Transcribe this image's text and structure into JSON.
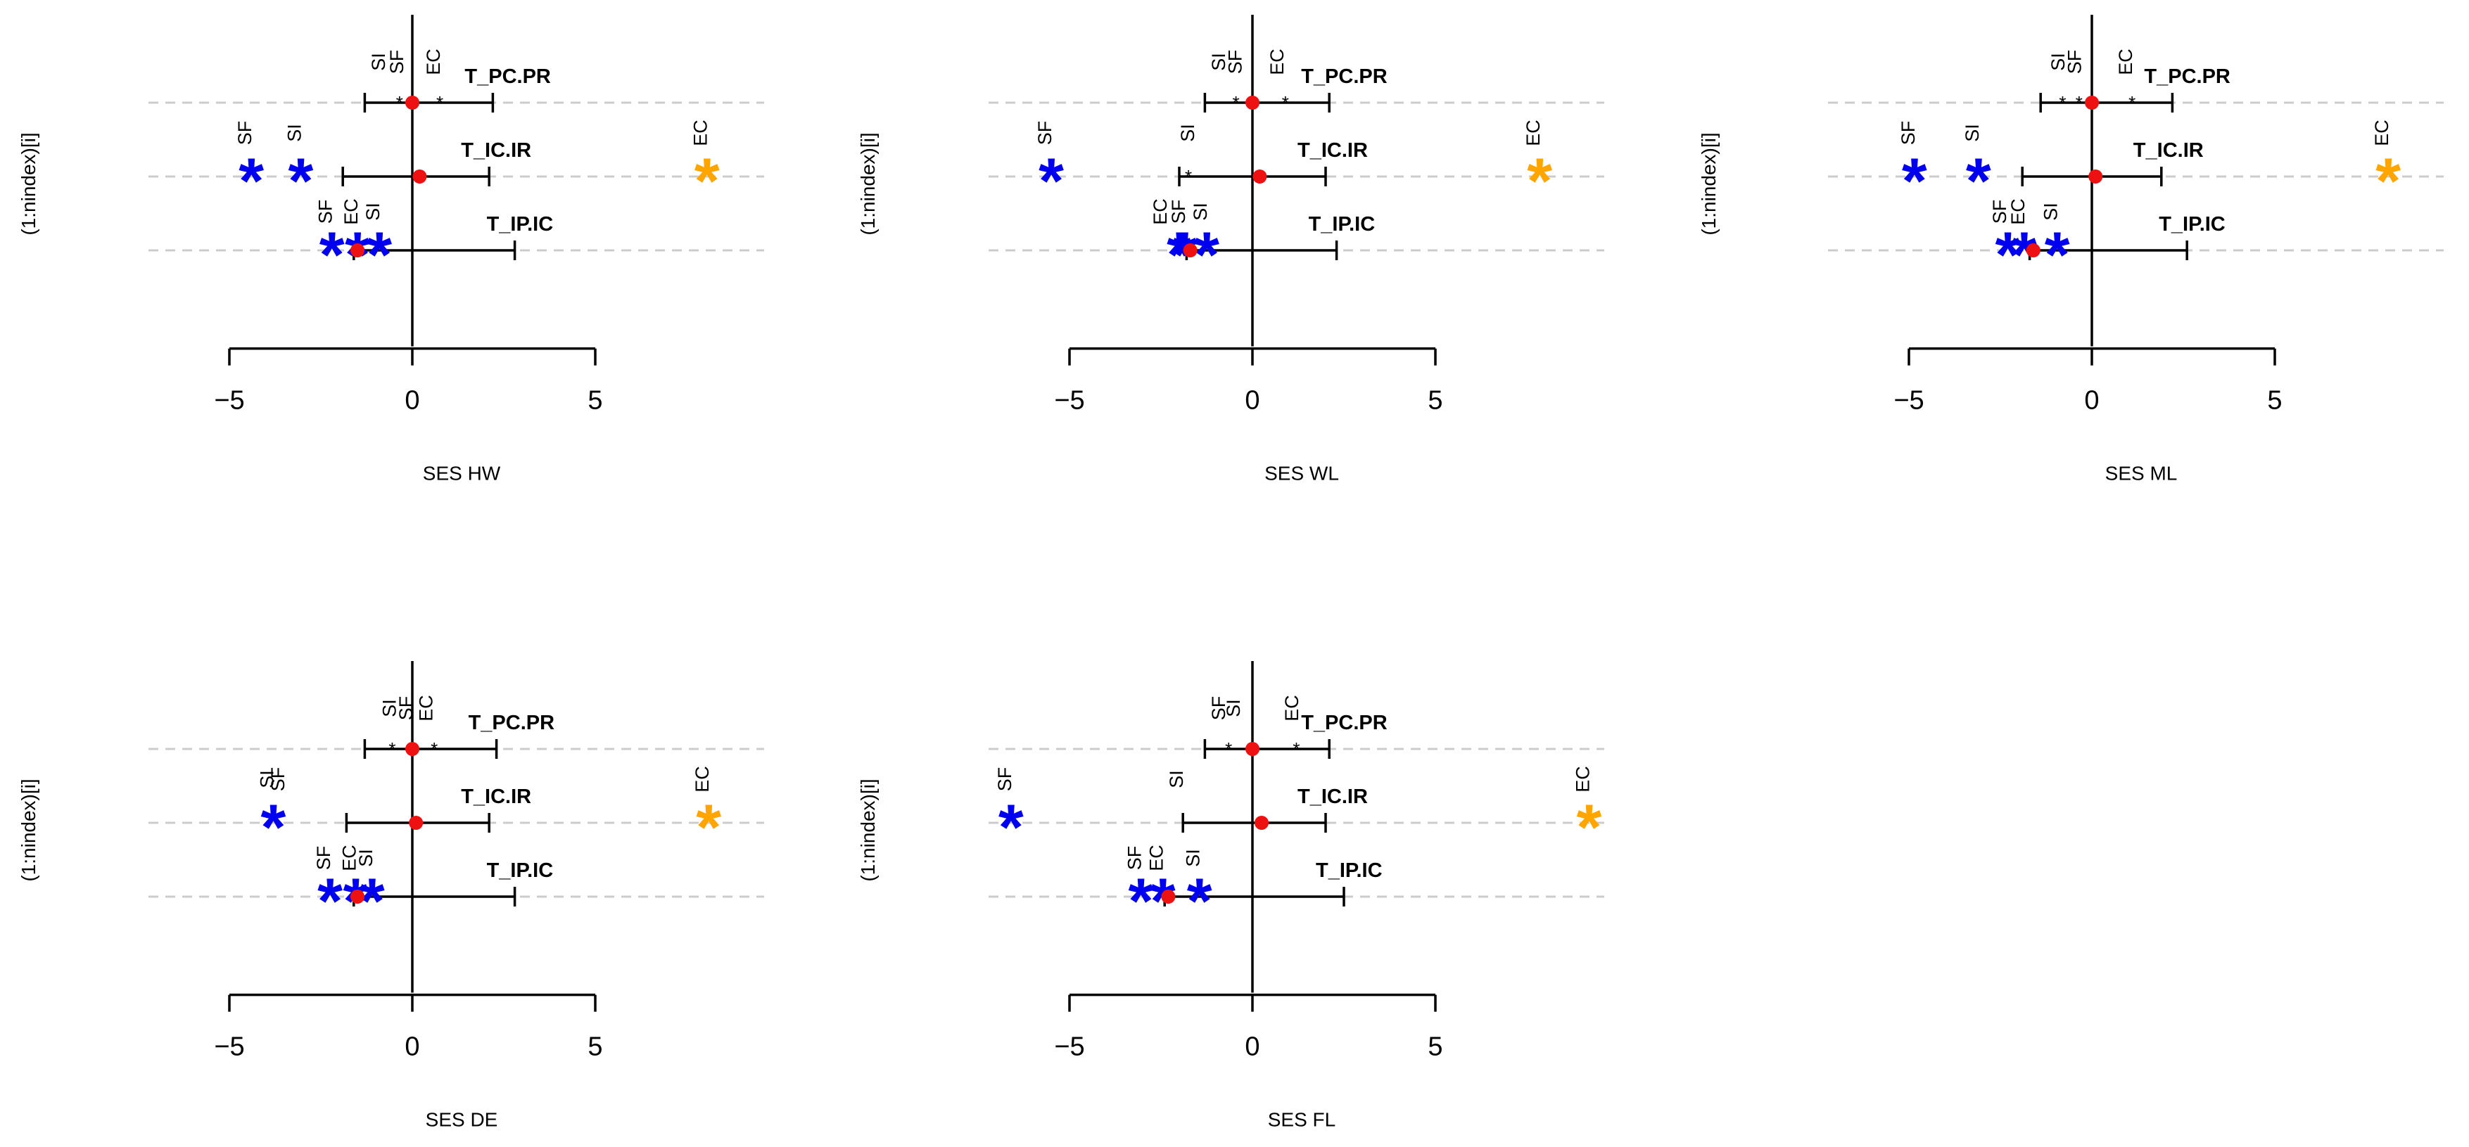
{
  "chart_data": {
    "type": "scatter",
    "description_labels": {
      "ylabel": "(1:nindex)[i]",
      "tick_labels": [
        "−5",
        "0",
        "5"
      ]
    },
    "colors": {
      "point": "#ee1111",
      "significant_low": "#0000ee",
      "significant_high": "#ffa500",
      "gridline": "#cccccc",
      "axis": "#000000"
    },
    "panels": [
      {
        "title": "SES HW",
        "xlim": [
          -5,
          5
        ],
        "rows": [
          {
            "index": "T_PC.PR",
            "mean": 0.0,
            "lower": -1.3,
            "upper": 2.2,
            "inner_points": [
              -0.35,
              0.75
            ],
            "outside_points": [],
            "labels": [
              {
                "text": "SI",
                "x": -0.75,
                "row_offset": 1
              },
              {
                "text": "SF",
                "x": -0.25,
                "row_offset": 1
              },
              {
                "text": "EC",
                "x": 0.75,
                "row_offset": 1
              }
            ]
          },
          {
            "index": "T_IC.IR",
            "mean": 0.2,
            "lower": -1.9,
            "upper": 2.1,
            "inner_points": [],
            "outside_points": [
              {
                "x": -4.4,
                "color": "low"
              },
              {
                "x": -3.05,
                "color": "low"
              },
              {
                "x": 8.05,
                "color": "high"
              }
            ],
            "labels": [
              {
                "text": "SF",
                "x": -4.4,
                "row_offset": 0
              },
              {
                "text": "SI",
                "x": -3.05,
                "row_offset": 0
              },
              {
                "text": "EC",
                "x": 8.05,
                "row_offset": 0
              },
              {
                "text": "SF",
                "x": -2.2,
                "row_offset": 1
              },
              {
                "text": "EC",
                "x": -1.5,
                "row_offset": 1
              },
              {
                "text": "SI",
                "x": -0.9,
                "row_offset": 1
              }
            ]
          },
          {
            "index": "T_IP.IC",
            "mean": -1.5,
            "lower": -1.6,
            "upper": 2.8,
            "inner_points": [],
            "outside_points": [
              {
                "x": -2.2,
                "color": "low"
              },
              {
                "x": -1.5,
                "color": "low"
              },
              {
                "x": -0.9,
                "color": "low"
              }
            ],
            "labels": []
          }
        ]
      },
      {
        "title": "SES WL",
        "xlim": [
          -5,
          5
        ],
        "rows": [
          {
            "index": "T_PC.PR",
            "mean": 0.0,
            "lower": -1.3,
            "upper": 2.1,
            "inner_points": [
              -0.45,
              0.9
            ],
            "outside_points": [],
            "labels": [
              {
                "text": "SI",
                "x": -0.75,
                "row_offset": 1
              },
              {
                "text": "SF",
                "x": -0.3,
                "row_offset": 1
              },
              {
                "text": "EC",
                "x": 0.85,
                "row_offset": 1
              }
            ]
          },
          {
            "index": "T_IC.IR",
            "mean": 0.2,
            "lower": -2.0,
            "upper": 2.0,
            "inner_points": [
              -1.75
            ],
            "outside_points": [
              {
                "x": -5.5,
                "color": "low"
              },
              {
                "x": 7.85,
                "color": "high"
              }
            ],
            "labels": [
              {
                "text": "SF",
                "x": -5.5,
                "row_offset": 0
              },
              {
                "text": "SI",
                "x": -1.6,
                "row_offset": 0
              },
              {
                "text": "EC",
                "x": 7.85,
                "row_offset": 0
              },
              {
                "text": "EC",
                "x": -2.35,
                "row_offset": 1
              },
              {
                "text": "SF",
                "x": -1.85,
                "row_offset": 1
              },
              {
                "text": "SI",
                "x": -1.25,
                "row_offset": 1
              }
            ]
          },
          {
            "index": "T_IP.IC",
            "mean": -1.7,
            "lower": -1.8,
            "upper": 2.3,
            "inner_points": [],
            "outside_points": [
              {
                "x": -2.0,
                "color": "low"
              },
              {
                "x": -1.85,
                "color": "low"
              },
              {
                "x": -1.25,
                "color": "low"
              }
            ],
            "labels": []
          }
        ]
      },
      {
        "title": "SES ML",
        "xlim": [
          -5,
          5
        ],
        "rows": [
          {
            "index": "T_PC.PR",
            "mean": 0.0,
            "lower": -1.4,
            "upper": 2.2,
            "inner_points": [
              -0.8,
              -0.35,
              1.1
            ],
            "outside_points": [],
            "labels": [
              {
                "text": "SI",
                "x": -0.75,
                "row_offset": 1
              },
              {
                "text": "SF",
                "x": -0.3,
                "row_offset": 1
              },
              {
                "text": "EC",
                "x": 1.1,
                "row_offset": 1
              }
            ]
          },
          {
            "index": "T_IC.IR",
            "mean": 0.1,
            "lower": -1.9,
            "upper": 1.9,
            "inner_points": [],
            "outside_points": [
              {
                "x": -4.85,
                "color": "low"
              },
              {
                "x": -3.1,
                "color": "low"
              },
              {
                "x": 8.1,
                "color": "high"
              }
            ],
            "labels": [
              {
                "text": "SF",
                "x": -4.85,
                "row_offset": 0
              },
              {
                "text": "SI",
                "x": -3.1,
                "row_offset": 0
              },
              {
                "text": "EC",
                "x": 8.1,
                "row_offset": 0
              },
              {
                "text": "SF",
                "x": -2.35,
                "row_offset": 1
              },
              {
                "text": "EC",
                "x": -1.85,
                "row_offset": 1
              },
              {
                "text": "SI",
                "x": -0.95,
                "row_offset": 1
              }
            ]
          },
          {
            "index": "T_IP.IC",
            "mean": -1.6,
            "lower": -1.7,
            "upper": 2.6,
            "inner_points": [],
            "outside_points": [
              {
                "x": -2.3,
                "color": "low"
              },
              {
                "x": -1.85,
                "color": "low"
              },
              {
                "x": -0.95,
                "color": "low"
              }
            ],
            "labels": []
          }
        ]
      },
      {
        "title": "SES DE",
        "xlim": [
          -5,
          5
        ],
        "rows": [
          {
            "index": "T_PC.PR",
            "mean": 0.0,
            "lower": -1.3,
            "upper": 2.3,
            "inner_points": [
              -0.55,
              0.6
            ],
            "outside_points": [],
            "labels": [
              {
                "text": "SI",
                "x": -0.45,
                "row_offset": 1
              },
              {
                "text": "SF",
                "x": 0.0,
                "row_offset": 1
              },
              {
                "text": "EC",
                "x": 0.55,
                "row_offset": 1
              }
            ]
          },
          {
            "index": "T_IC.IR",
            "mean": 0.1,
            "lower": -1.8,
            "upper": 2.1,
            "inner_points": [],
            "outside_points": [
              {
                "x": -3.8,
                "color": "low"
              },
              {
                "x": 8.1,
                "color": "high"
              }
            ],
            "labels": [
              {
                "text": "SI",
                "x": -3.8,
                "row_offset": 0
              },
              {
                "text": "SF",
                "x": -3.5,
                "row_offset": 0
              },
              {
                "text": "EC",
                "x": 8.1,
                "row_offset": 0
              },
              {
                "text": "SF",
                "x": -2.25,
                "row_offset": 1
              },
              {
                "text": "EC",
                "x": -1.55,
                "row_offset": 1
              },
              {
                "text": "SI",
                "x": -1.1,
                "row_offset": 1
              }
            ]
          },
          {
            "index": "T_IP.IC",
            "mean": -1.5,
            "lower": -1.6,
            "upper": 2.8,
            "inner_points": [],
            "outside_points": [
              {
                "x": -2.25,
                "color": "low"
              },
              {
                "x": -1.55,
                "color": "low"
              },
              {
                "x": -1.1,
                "color": "low"
              }
            ],
            "labels": []
          }
        ]
      },
      {
        "title": "SES FL",
        "xlim": [
          -5,
          5
        ],
        "rows": [
          {
            "index": "T_PC.PR",
            "mean": 0.0,
            "lower": -1.3,
            "upper": 2.1,
            "inner_points": [
              -0.65,
              1.2
            ],
            "outside_points": [],
            "labels": [
              {
                "text": "SF",
                "x": -0.75,
                "row_offset": 1
              },
              {
                "text": "SI",
                "x": -0.35,
                "row_offset": 1
              },
              {
                "text": "EC",
                "x": 1.25,
                "row_offset": 1
              }
            ]
          },
          {
            "index": "T_IC.IR",
            "mean": 0.25,
            "lower": -1.9,
            "upper": 2.0,
            "inner_points": [],
            "outside_points": [
              {
                "x": -6.6,
                "color": "low"
              },
              {
                "x": 9.2,
                "color": "high"
              }
            ],
            "labels": [
              {
                "text": "SF",
                "x": -6.6,
                "row_offset": 0
              },
              {
                "text": "SI",
                "x": -1.9,
                "row_offset": 0
              },
              {
                "text": "EC",
                "x": 9.2,
                "row_offset": 0
              },
              {
                "text": "SF",
                "x": -3.05,
                "row_offset": 1
              },
              {
                "text": "EC",
                "x": -2.45,
                "row_offset": 1
              },
              {
                "text": "SI",
                "x": -1.45,
                "row_offset": 1
              }
            ]
          },
          {
            "index": "T_IP.IC",
            "mean": -2.3,
            "lower": -2.4,
            "upper": 2.5,
            "inner_points": [],
            "outside_points": [
              {
                "x": -3.05,
                "color": "low"
              },
              {
                "x": -2.45,
                "color": "low"
              },
              {
                "x": -1.45,
                "color": "low"
              }
            ],
            "labels": []
          }
        ]
      }
    ]
  }
}
